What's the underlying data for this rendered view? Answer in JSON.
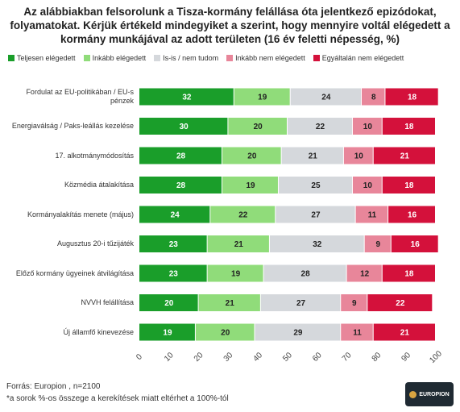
{
  "chart_data": {
    "type": "stacked-bar-horizontal",
    "title": "Az alábbiakban felsorolunk a Tisza-kormány felállása óta jelentkező epizódokat, folyamatokat. Kérjük értékeld mindegyiket a szerint, hogy mennyire voltál elégedett a kormány munkájával az adott területen (16 év feletti népesség, %)",
    "categories": [
      "Fordulat az EU-politikában / EU-s pénzek",
      "Energiaválság / Paks-leállás kezelése",
      "17. alkotmánymódosítás",
      "Közmédia átalakítása",
      "Kormányalakítás menete (május)",
      "Augusztus 20-i tűzijáték",
      "Előző kormány ügyeinek átvilágítása",
      "NVVH felállítása",
      "Új államfő kinevezése"
    ],
    "series": [
      {
        "name": "Teljesen elégedett",
        "color": "#1a9e2a",
        "values": [
          32,
          30,
          28,
          28,
          24,
          23,
          23,
          20,
          19
        ]
      },
      {
        "name": "Inkább elégedett",
        "color": "#90dc7a",
        "values": [
          19,
          20,
          20,
          19,
          22,
          21,
          19,
          21,
          20
        ]
      },
      {
        "name": "Is-is / nem tudom",
        "color": "#d5d8dc",
        "values": [
          24,
          22,
          21,
          25,
          27,
          32,
          28,
          27,
          29
        ]
      },
      {
        "name": "Inkább nem elégedett",
        "color": "#e8869a",
        "values": [
          8,
          10,
          10,
          10,
          11,
          9,
          12,
          9,
          11
        ]
      },
      {
        "name": "Egyáltalán nem elégedett",
        "color": "#d4113b",
        "values": [
          18,
          18,
          21,
          18,
          16,
          16,
          18,
          22,
          21
        ]
      }
    ],
    "xlim": [
      0,
      100
    ],
    "xticks": [
      0,
      10,
      20,
      30,
      40,
      50,
      60,
      70,
      80,
      90,
      100
    ],
    "source": "Forrás: Europion , n=2100",
    "footnote": "*a sorok %-os összege a kerekítések miatt eltérhet a 100%-tól",
    "logo": "EUROPION"
  }
}
